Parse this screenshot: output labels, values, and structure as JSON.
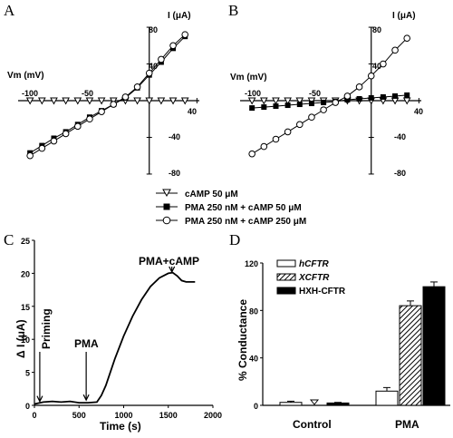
{
  "chart_data": [
    {
      "panel": "A",
      "type": "line",
      "xlabel": "Vm (mV)",
      "ylabel": "I (μA)",
      "xticks": [
        "-100",
        "-50"
      ],
      "xtick_extra": "40",
      "yticks": [
        "80",
        "40",
        "-40",
        "-80"
      ],
      "xlim": [
        -110,
        42
      ],
      "ylim": [
        -85,
        85
      ],
      "x": [
        -100,
        -90,
        -80,
        -70,
        -60,
        -50,
        -40,
        -30,
        -20,
        -10,
        0,
        10,
        20,
        30
      ],
      "series": [
        {
          "name": "cAMP 50 μM",
          "marker": "triangle-down-open",
          "values": [
            0,
            0,
            0,
            0,
            0,
            0,
            0,
            0,
            0,
            0,
            0,
            0,
            0,
            0
          ]
        },
        {
          "name": "PMA 250 nM + cAMP 50 μM",
          "marker": "square-filled",
          "values": [
            -57,
            -49,
            -41,
            -34,
            -26,
            -18,
            -11,
            -4,
            3,
            14,
            28,
            42,
            57,
            70
          ]
        },
        {
          "name": "PMA 250 nM + cAMP 250 μM",
          "marker": "circle-open",
          "values": [
            -60,
            -52,
            -44,
            -36,
            -28,
            -20,
            -12,
            -4,
            4,
            15,
            30,
            45,
            60,
            72
          ]
        }
      ]
    },
    {
      "panel": "B",
      "type": "line",
      "xlabel": "Vm (mV)",
      "ylabel": "I (μA)",
      "xticks": [
        "-100",
        "-50"
      ],
      "xtick_extra": "40",
      "yticks": [
        "80",
        "40",
        "-40",
        "-80"
      ],
      "xlim": [
        -110,
        42
      ],
      "ylim": [
        -85,
        85
      ],
      "x": [
        -100,
        -90,
        -80,
        -70,
        -60,
        -50,
        -40,
        -30,
        -20,
        -10,
        0,
        10,
        20,
        30
      ],
      "series": [
        {
          "name": "cAMP 50 μM",
          "marker": "triangle-down-open",
          "values": [
            0,
            0,
            0,
            0,
            0,
            0,
            0,
            0,
            0,
            0,
            0,
            0,
            0,
            0
          ]
        },
        {
          "name": "PMA 250 nM + cAMP 50 μM",
          "marker": "square-filled",
          "values": [
            -8,
            -7,
            -6,
            -5,
            -4,
            -3,
            -2,
            -1,
            1,
            2,
            3,
            4,
            5,
            6
          ]
        },
        {
          "name": "PMA 250 nM + cAMP 250 μM",
          "marker": "circle-open",
          "values": [
            -58,
            -50,
            -42,
            -34,
            -26,
            -18,
            -10,
            -2,
            5,
            15,
            27,
            40,
            55,
            68
          ]
        }
      ]
    },
    {
      "panel": "C",
      "type": "line",
      "xlabel": "Time (s)",
      "ylabel": "Δ I (μA)",
      "xticks": [
        "0",
        "500",
        "1000",
        "1500",
        "2000"
      ],
      "yticks": [
        "0",
        "5",
        "10",
        "15",
        "20",
        "25"
      ],
      "xlim": [
        0,
        2000
      ],
      "ylim": [
        0,
        25
      ],
      "annotations": [
        {
          "text": "Priming",
          "x": 60,
          "y": 0.3
        },
        {
          "text": "PMA",
          "x": 580,
          "y": 0.3
        },
        {
          "text": "PMA+cAMP",
          "x": 1540,
          "y": 20
        }
      ],
      "series": [
        {
          "values": [
            [
              0,
              0.2
            ],
            [
              100,
              0.5
            ],
            [
              200,
              0.6
            ],
            [
              300,
              0.5
            ],
            [
              400,
              0.6
            ],
            [
              500,
              0.4
            ],
            [
              600,
              0.4
            ],
            [
              700,
              0.5
            ],
            [
              750,
              1.5
            ],
            [
              800,
              3
            ],
            [
              900,
              7
            ],
            [
              1000,
              10.5
            ],
            [
              1100,
              13.5
            ],
            [
              1200,
              16
            ],
            [
              1300,
              18
            ],
            [
              1400,
              19.3
            ],
            [
              1500,
              20
            ],
            [
              1550,
              20.1
            ],
            [
              1600,
              19.6
            ],
            [
              1650,
              18.9
            ],
            [
              1700,
              18.7
            ],
            [
              1800,
              18.7
            ]
          ]
        }
      ]
    },
    {
      "panel": "D",
      "type": "bar",
      "ylabel": "% Conductance",
      "categories": [
        "Control",
        "PMA"
      ],
      "yticks": [
        "0",
        "40",
        "80",
        "120"
      ],
      "ylim": [
        0,
        120
      ],
      "series": [
        {
          "name": "hCFTR",
          "pattern": "white",
          "values": [
            2.5,
            12
          ],
          "errors": [
            1,
            3
          ]
        },
        {
          "name": "XCFTR",
          "pattern": "hatched",
          "values": [
            0,
            84
          ],
          "errors": [
            0,
            4
          ]
        },
        {
          "name": "HXH-CFTR",
          "pattern": "black",
          "values": [
            2,
            100
          ],
          "errors": [
            0.5,
            4
          ]
        }
      ]
    }
  ]
}
